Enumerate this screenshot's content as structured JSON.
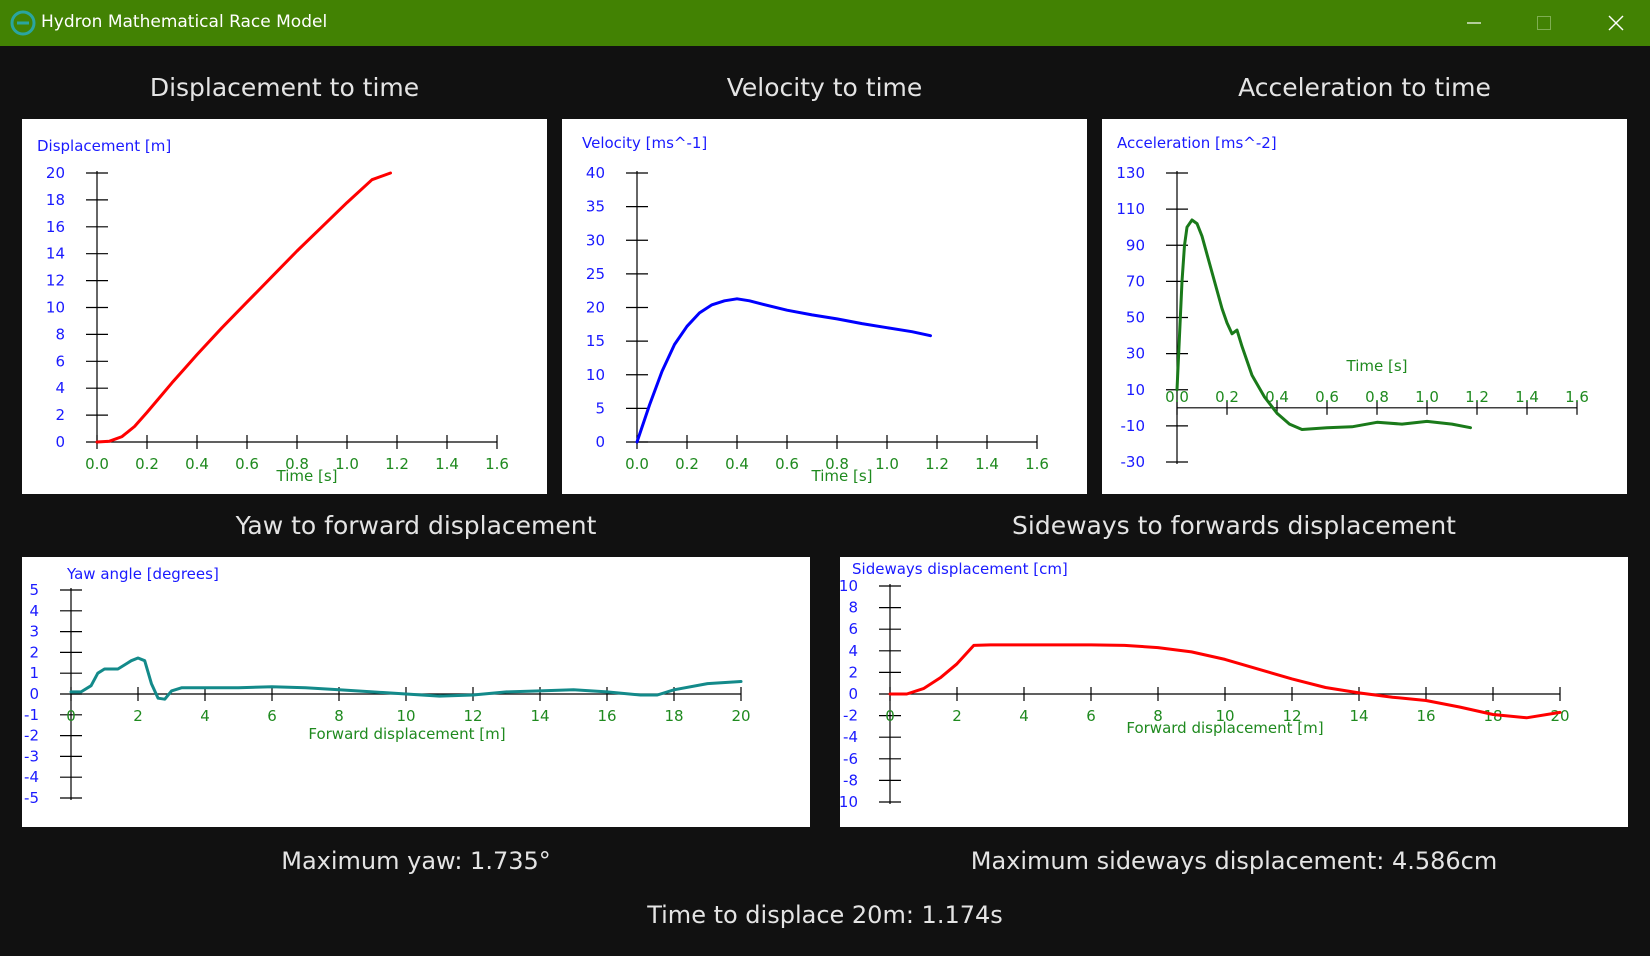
{
  "window": {
    "title": "Hydron Mathematical Race Model",
    "titlebar_color": "#428203",
    "controls": [
      "minimize-icon",
      "maximize-icon",
      "close-icon"
    ]
  },
  "titles": {
    "displacement": "Displacement to time",
    "velocity": "Velocity to time",
    "acceleration": "Acceleration to time",
    "yaw": "Yaw to forward displacement",
    "sideways": "Sideways to forwards displacement"
  },
  "stats": {
    "max_yaw": "Maximum yaw: 1.735°",
    "max_sideways": "Maximum sideways displacement: 4.586cm",
    "time_to_20m": "Time to displace 20m: 1.174s"
  },
  "colors": {
    "y_axis_text": "#1a1aff",
    "x_axis_text": "#1f8a1f",
    "displacement_line": "#ff0000",
    "velocity_line": "#0000ff",
    "acceleration_line": "#1a7a1a",
    "yaw_line": "#138a8a",
    "sideways_line": "#ff0000"
  },
  "chart_data": [
    {
      "id": "displacement",
      "type": "line",
      "title": "Displacement to time",
      "xlabel": "Time [s]",
      "ylabel": "Displacement [m]",
      "xlim": [
        0,
        1.6
      ],
      "ylim": [
        0,
        20
      ],
      "xticks": [
        "0.0",
        "0.2",
        "0.4",
        "0.6",
        "0.8",
        "1.0",
        "1.2",
        "1.4",
        "1.6"
      ],
      "yticks": [
        "0",
        "2",
        "4",
        "6",
        "8",
        "10",
        "12",
        "14",
        "16",
        "18",
        "20"
      ],
      "series": [
        {
          "color": "#ff0000",
          "x": [
            0,
            0.05,
            0.1,
            0.15,
            0.2,
            0.25,
            0.3,
            0.35,
            0.4,
            0.5,
            0.6,
            0.7,
            0.8,
            0.9,
            1.0,
            1.1,
            1.174
          ],
          "y": [
            0,
            0.06,
            0.4,
            1.15,
            2.2,
            3.3,
            4.4,
            5.45,
            6.5,
            8.5,
            10.4,
            12.3,
            14.2,
            16.0,
            17.8,
            19.5,
            20
          ]
        }
      ]
    },
    {
      "id": "velocity",
      "type": "line",
      "title": "Velocity to time",
      "xlabel": "Time [s]",
      "ylabel": "Velocity [ms^-1]",
      "xlim": [
        0,
        1.6
      ],
      "ylim": [
        0,
        40
      ],
      "xticks": [
        "0.0",
        "0.2",
        "0.4",
        "0.6",
        "0.8",
        "1.0",
        "1.2",
        "1.4",
        "1.6"
      ],
      "yticks": [
        "0",
        "5",
        "10",
        "15",
        "20",
        "25",
        "30",
        "35",
        "40"
      ],
      "series": [
        {
          "color": "#0000ff",
          "x": [
            0,
            0.05,
            0.1,
            0.15,
            0.2,
            0.25,
            0.3,
            0.35,
            0.4,
            0.45,
            0.5,
            0.6,
            0.7,
            0.8,
            0.9,
            1.0,
            1.1,
            1.174
          ],
          "y": [
            0,
            5.5,
            10.5,
            14.5,
            17.2,
            19.2,
            20.4,
            21.0,
            21.3,
            21.0,
            20.5,
            19.6,
            18.9,
            18.3,
            17.6,
            17.0,
            16.4,
            15.8
          ]
        }
      ]
    },
    {
      "id": "acceleration",
      "type": "line",
      "title": "Acceleration to time",
      "xlabel": "Time [s]",
      "ylabel": "Acceleration [ms^-2]",
      "xlim": [
        0,
        1.6
      ],
      "ylim": [
        -30,
        130
      ],
      "xticks": [
        "0.0",
        "0.2",
        "0.4",
        "0.6",
        "0.8",
        "1.0",
        "1.2",
        "1.4",
        "1.6"
      ],
      "yticks": [
        "130",
        "110",
        "90",
        "70",
        "50",
        "30",
        "10",
        "-10",
        "-30"
      ],
      "series": [
        {
          "color": "#1a7a1a",
          "x": [
            0,
            0.01,
            0.02,
            0.03,
            0.04,
            0.06,
            0.08,
            0.1,
            0.12,
            0.15,
            0.18,
            0.2,
            0.22,
            0.24,
            0.26,
            0.3,
            0.35,
            0.4,
            0.45,
            0.5,
            0.6,
            0.7,
            0.8,
            0.9,
            1.0,
            1.1,
            1.174
          ],
          "y": [
            10,
            40,
            70,
            90,
            100,
            104,
            102,
            95,
            85,
            70,
            55,
            47,
            41,
            43,
            34,
            18,
            6,
            -3,
            -9,
            -12,
            -11,
            -10.5,
            -8,
            -9,
            -7.5,
            -9,
            -11
          ]
        }
      ]
    },
    {
      "id": "yaw",
      "type": "line",
      "title": "Yaw to forward displacement",
      "xlabel": "Forward displacement [m]",
      "ylabel": "Yaw angle [degrees]",
      "xlim": [
        0,
        20
      ],
      "ylim": [
        -5,
        5
      ],
      "xticks": [
        "0",
        "2",
        "4",
        "6",
        "8",
        "10",
        "12",
        "14",
        "16",
        "18",
        "20"
      ],
      "yticks": [
        "5",
        "4",
        "3",
        "2",
        "1",
        "0",
        "-1",
        "-2",
        "-3",
        "-4",
        "-5"
      ],
      "series": [
        {
          "color": "#138a8a",
          "x": [
            0,
            0.3,
            0.6,
            0.8,
            1.0,
            1.4,
            1.6,
            1.8,
            2.0,
            2.2,
            2.4,
            2.6,
            2.8,
            3.0,
            3.3,
            4,
            5,
            6,
            7,
            8,
            9,
            10,
            11,
            12,
            13,
            14,
            15,
            16,
            17,
            17.5,
            18,
            19,
            20
          ],
          "y": [
            0.1,
            0.1,
            0.4,
            1.0,
            1.2,
            1.2,
            1.4,
            1.6,
            1.73,
            1.6,
            0.5,
            -0.2,
            -0.25,
            0.15,
            0.3,
            0.3,
            0.3,
            0.35,
            0.3,
            0.2,
            0.1,
            0.0,
            -0.1,
            -0.05,
            0.1,
            0.15,
            0.2,
            0.1,
            -0.05,
            -0.05,
            0.2,
            0.5,
            0.6
          ]
        }
      ]
    },
    {
      "id": "sideways",
      "type": "line",
      "title": "Sideways to forwards displacement",
      "xlabel": "Forward displacement [m]",
      "ylabel": "Sideways displacement [cm]",
      "xlim": [
        0,
        20
      ],
      "ylim": [
        -10,
        10
      ],
      "xticks": [
        "0",
        "2",
        "4",
        "6",
        "8",
        "10",
        "12",
        "14",
        "16",
        "18",
        "20"
      ],
      "yticks": [
        "10",
        "8",
        "6",
        "4",
        "2",
        "0",
        "-2",
        "-4",
        "-6",
        "-8",
        "-10"
      ],
      "series": [
        {
          "color": "#ff0000",
          "x": [
            0,
            0.5,
            1.0,
            1.5,
            2.0,
            2.5,
            3,
            4,
            5,
            6,
            7,
            8,
            9,
            10,
            11,
            12,
            13,
            14,
            15,
            16,
            17,
            18,
            19,
            20
          ],
          "y": [
            0,
            0,
            0.5,
            1.5,
            2.8,
            4.5,
            4.55,
            4.55,
            4.55,
            4.55,
            4.5,
            4.3,
            3.9,
            3.2,
            2.3,
            1.4,
            0.6,
            0.1,
            -0.3,
            -0.6,
            -1.2,
            -1.9,
            -2.2,
            -1.7
          ]
        }
      ]
    }
  ]
}
